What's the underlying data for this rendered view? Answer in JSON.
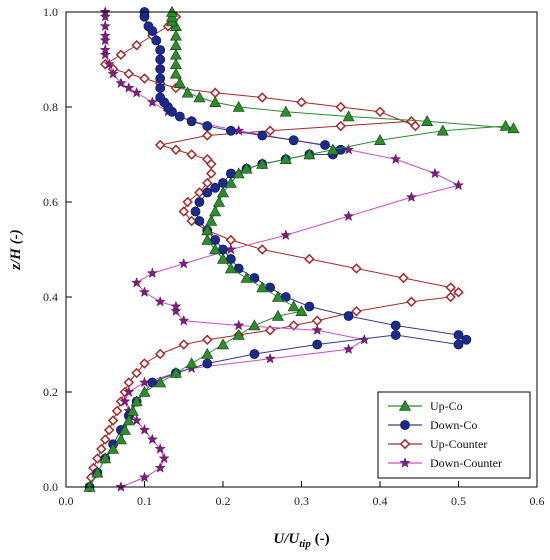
{
  "chart_data": {
    "type": "line",
    "xlabel": "U/U_tip (-)",
    "xlabel_parts": {
      "main": "U/U",
      "sub": "tip",
      "unit": " (-)"
    },
    "ylabel": "z/H (-)",
    "xlim": [
      0,
      0.6
    ],
    "ylim": [
      0,
      1.0
    ],
    "xticks": [
      "0.0",
      "0.1",
      "0.2",
      "0.3",
      "0.4",
      "0.5",
      "0.6"
    ],
    "yticks": [
      "0.0",
      "0.2",
      "0.4",
      "0.6",
      "0.8",
      "1.0"
    ],
    "xtick_values": [
      0,
      0.1,
      0.2,
      0.3,
      0.4,
      0.5,
      0.6
    ],
    "ytick_values": [
      0,
      0.2,
      0.4,
      0.6,
      0.8,
      1.0
    ],
    "grid": false,
    "legend_position": "bottom-right",
    "series": [
      {
        "name": "Up-Co",
        "color": "#2e8b2e",
        "line_color": "#2e8b2e",
        "marker": "triangle",
        "x": [
          0.03,
          0.04,
          0.05,
          0.06,
          0.07,
          0.075,
          0.08,
          0.085,
          0.09,
          0.1,
          0.12,
          0.14,
          0.16,
          0.18,
          0.2,
          0.22,
          0.24,
          0.27,
          0.3,
          0.29,
          0.27,
          0.25,
          0.23,
          0.21,
          0.2,
          0.19,
          0.18,
          0.18,
          0.185,
          0.19,
          0.195,
          0.2,
          0.21,
          0.22,
          0.23,
          0.25,
          0.28,
          0.31,
          0.34,
          0.4,
          0.48,
          0.56,
          0.57,
          0.46,
          0.36,
          0.28,
          0.22,
          0.19,
          0.17,
          0.155,
          0.145,
          0.14,
          0.14,
          0.14,
          0.14,
          0.14,
          0.14,
          0.135,
          0.135,
          0.135
        ],
        "y": [
          0.0,
          0.03,
          0.06,
          0.08,
          0.1,
          0.12,
          0.14,
          0.16,
          0.18,
          0.2,
          0.22,
          0.24,
          0.26,
          0.28,
          0.3,
          0.32,
          0.34,
          0.36,
          0.37,
          0.38,
          0.4,
          0.42,
          0.44,
          0.46,
          0.48,
          0.5,
          0.52,
          0.54,
          0.56,
          0.58,
          0.6,
          0.62,
          0.64,
          0.66,
          0.67,
          0.68,
          0.69,
          0.7,
          0.71,
          0.73,
          0.75,
          0.76,
          0.755,
          0.77,
          0.78,
          0.79,
          0.8,
          0.81,
          0.82,
          0.83,
          0.85,
          0.87,
          0.89,
          0.91,
          0.93,
          0.95,
          0.97,
          0.98,
          0.99,
          1.0
        ]
      },
      {
        "name": "Down-Co",
        "color": "#1c2a8a",
        "line_color": "#3a3a8c",
        "marker": "circle",
        "x": [
          0.03,
          0.04,
          0.05,
          0.06,
          0.07,
          0.08,
          0.09,
          0.11,
          0.14,
          0.18,
          0.24,
          0.32,
          0.42,
          0.5,
          0.51,
          0.5,
          0.42,
          0.36,
          0.31,
          0.28,
          0.26,
          0.24,
          0.22,
          0.21,
          0.2,
          0.19,
          0.18,
          0.17,
          0.165,
          0.17,
          0.18,
          0.19,
          0.2,
          0.21,
          0.23,
          0.25,
          0.28,
          0.31,
          0.34,
          0.35,
          0.33,
          0.29,
          0.25,
          0.21,
          0.18,
          0.16,
          0.145,
          0.135,
          0.13,
          0.125,
          0.12,
          0.12,
          0.12,
          0.12,
          0.12,
          0.12,
          0.115,
          0.11,
          0.105,
          0.1,
          0.1
        ],
        "y": [
          0.0,
          0.03,
          0.06,
          0.09,
          0.12,
          0.15,
          0.18,
          0.22,
          0.24,
          0.26,
          0.28,
          0.3,
          0.32,
          0.3,
          0.31,
          0.32,
          0.34,
          0.36,
          0.38,
          0.4,
          0.42,
          0.44,
          0.46,
          0.48,
          0.5,
          0.52,
          0.54,
          0.56,
          0.58,
          0.6,
          0.62,
          0.63,
          0.64,
          0.66,
          0.67,
          0.68,
          0.69,
          0.7,
          0.7,
          0.71,
          0.72,
          0.73,
          0.74,
          0.75,
          0.76,
          0.77,
          0.78,
          0.79,
          0.8,
          0.81,
          0.82,
          0.84,
          0.86,
          0.88,
          0.9,
          0.92,
          0.94,
          0.96,
          0.97,
          0.99,
          1.0
        ]
      },
      {
        "name": "Up-Counter",
        "color": "#a52a2a",
        "line_color": "#a52a2a",
        "marker": "diamond",
        "x": [
          0.03,
          0.032,
          0.035,
          0.04,
          0.045,
          0.05,
          0.055,
          0.06,
          0.065,
          0.07,
          0.075,
          0.08,
          0.09,
          0.1,
          0.12,
          0.15,
          0.18,
          0.22,
          0.26,
          0.29,
          0.32,
          0.37,
          0.44,
          0.49,
          0.5,
          0.49,
          0.43,
          0.37,
          0.31,
          0.25,
          0.21,
          0.18,
          0.16,
          0.15,
          0.155,
          0.17,
          0.18,
          0.185,
          0.185,
          0.18,
          0.16,
          0.14,
          0.12,
          0.18,
          0.26,
          0.35,
          0.44,
          0.445,
          0.4,
          0.35,
          0.3,
          0.25,
          0.19,
          0.14,
          0.12,
          0.1,
          0.08,
          0.06,
          0.05,
          0.07,
          0.09,
          0.11,
          0.13,
          0.14
        ],
        "y": [
          0.0,
          0.02,
          0.04,
          0.06,
          0.08,
          0.1,
          0.12,
          0.14,
          0.16,
          0.18,
          0.2,
          0.22,
          0.24,
          0.26,
          0.28,
          0.3,
          0.31,
          0.32,
          0.33,
          0.34,
          0.35,
          0.37,
          0.39,
          0.4,
          0.41,
          0.42,
          0.44,
          0.46,
          0.48,
          0.5,
          0.52,
          0.54,
          0.56,
          0.58,
          0.6,
          0.62,
          0.64,
          0.66,
          0.68,
          0.69,
          0.7,
          0.71,
          0.72,
          0.74,
          0.75,
          0.76,
          0.77,
          0.76,
          0.79,
          0.8,
          0.81,
          0.82,
          0.83,
          0.84,
          0.85,
          0.86,
          0.87,
          0.88,
          0.89,
          0.91,
          0.93,
          0.95,
          0.97,
          0.99
        ]
      },
      {
        "name": "Down-Counter",
        "color": "#7b1f7b",
        "line_color": "#c94fc9",
        "marker": "star",
        "x": [
          0.07,
          0.1,
          0.12,
          0.125,
          0.12,
          0.11,
          0.1,
          0.09,
          0.08,
          0.075,
          0.08,
          0.1,
          0.16,
          0.26,
          0.36,
          0.38,
          0.32,
          0.22,
          0.15,
          0.14,
          0.14,
          0.12,
          0.1,
          0.09,
          0.11,
          0.15,
          0.21,
          0.28,
          0.36,
          0.44,
          0.5,
          0.47,
          0.42,
          0.36,
          0.29,
          0.22,
          0.16,
          0.13,
          0.11,
          0.09,
          0.08,
          0.07,
          0.06,
          0.055,
          0.05,
          0.05,
          0.05,
          0.05,
          0.05,
          0.05,
          0.05
        ],
        "y": [
          0.0,
          0.02,
          0.04,
          0.06,
          0.08,
          0.1,
          0.12,
          0.14,
          0.16,
          0.18,
          0.2,
          0.22,
          0.25,
          0.27,
          0.29,
          0.31,
          0.33,
          0.34,
          0.35,
          0.37,
          0.38,
          0.39,
          0.41,
          0.43,
          0.45,
          0.47,
          0.5,
          0.53,
          0.57,
          0.61,
          0.635,
          0.66,
          0.69,
          0.71,
          0.73,
          0.75,
          0.77,
          0.79,
          0.81,
          0.83,
          0.84,
          0.85,
          0.87,
          0.89,
          0.91,
          0.92,
          0.94,
          0.95,
          0.97,
          0.99,
          1.0
        ]
      }
    ]
  }
}
